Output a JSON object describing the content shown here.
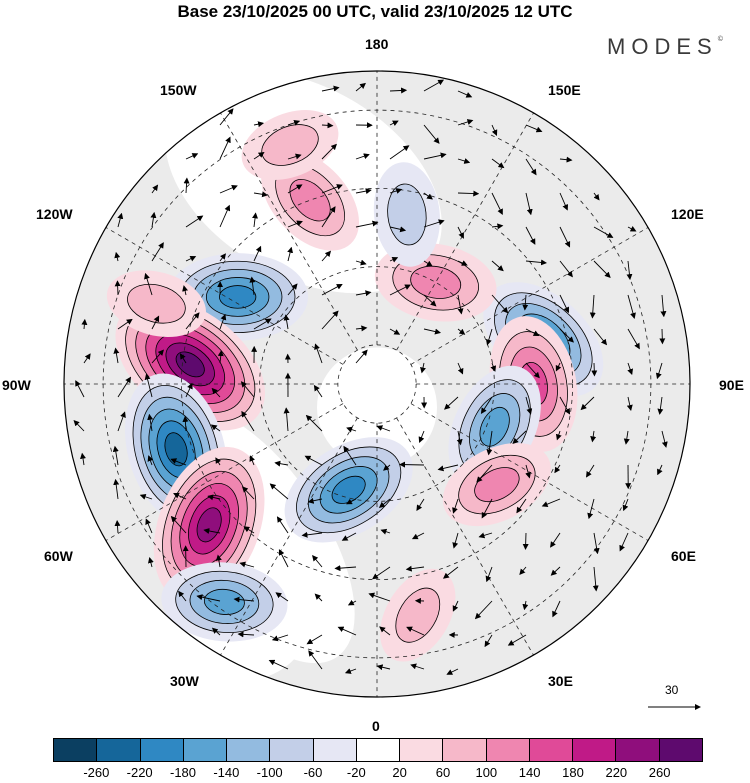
{
  "title": "Base 23/10/2025 00 UTC, valid 23/10/2025 12 UTC",
  "brand": {
    "name": "MODES",
    "mark": "©"
  },
  "longitude_labels": {
    "l180": "180",
    "l150E": "150E",
    "l120E": "120E",
    "l90E": "90E",
    "l60E": "60E",
    "l30E": "30E",
    "l0": "0",
    "l30W": "30W",
    "l60W": "60W",
    "l90W": "90W",
    "l120W": "120W",
    "l150W": "150W"
  },
  "reference_vector": {
    "label": "30"
  },
  "colorbar": {
    "colors": [
      "#0b3f61",
      "#15669a",
      "#2f88c3",
      "#5aa3d2",
      "#93bbe0",
      "#c3cfe8",
      "#e6e7f4",
      "#ffffff",
      "#fadbe2",
      "#f6b8c9",
      "#ef86b0",
      "#e04a98",
      "#c01a87",
      "#8f0e7c",
      "#5e0a6e"
    ],
    "labels": [
      "-260",
      "-220",
      "-180",
      "-140",
      "-100",
      "-60",
      "-20",
      "20",
      "60",
      "100",
      "140",
      "180",
      "220",
      "260"
    ]
  },
  "anomaly_centers": [
    {
      "lon": -122,
      "lat": 48,
      "value": -180,
      "name": "negative-anomaly-120w"
    },
    {
      "lon": -96,
      "lat": 42,
      "value": 260,
      "name": "positive-anomaly-canada"
    },
    {
      "lon": -72,
      "lat": 36,
      "value": -220,
      "name": "negative-anomaly-atlantic-west"
    },
    {
      "lon": -50,
      "lat": 34,
      "value": 240,
      "name": "positive-anomaly-atlantic"
    },
    {
      "lon": -15,
      "lat": 62,
      "value": -180,
      "name": "negative-anomaly-greenland-sea"
    },
    {
      "lon": -35,
      "lat": 22,
      "value": -140,
      "name": "negative-anomaly-south-atlantic"
    },
    {
      "lon": 105,
      "lat": 46,
      "value": -180,
      "name": "negative-anomaly-siberia"
    },
    {
      "lon": 90,
      "lat": 50,
      "value": 170,
      "name": "positive-anomaly-90e"
    },
    {
      "lon": 70,
      "lat": 58,
      "value": -150,
      "name": "negative-anomaly-ural"
    },
    {
      "lon": 50,
      "lat": 50,
      "value": 110,
      "name": "positive-anomaly-west-russia"
    },
    {
      "lon": 150,
      "lat": 60,
      "value": 130,
      "name": "positive-anomaly-east-siberia"
    },
    {
      "lon": -160,
      "lat": 40,
      "value": 120,
      "name": "positive-anomaly-pacific"
    },
    {
      "lon": 170,
      "lat": 46,
      "value": -80,
      "name": "negative-anomaly-north-pacific"
    },
    {
      "lon": 10,
      "lat": 30,
      "value": 70,
      "name": "positive-anomaly-africa"
    },
    {
      "lon": -160,
      "lat": 25,
      "value": 70,
      "name": "positive-anomaly-hawaii"
    },
    {
      "lon": -110,
      "lat": 30,
      "value": 70,
      "name": "positive-anomaly-mexico"
    }
  ]
}
